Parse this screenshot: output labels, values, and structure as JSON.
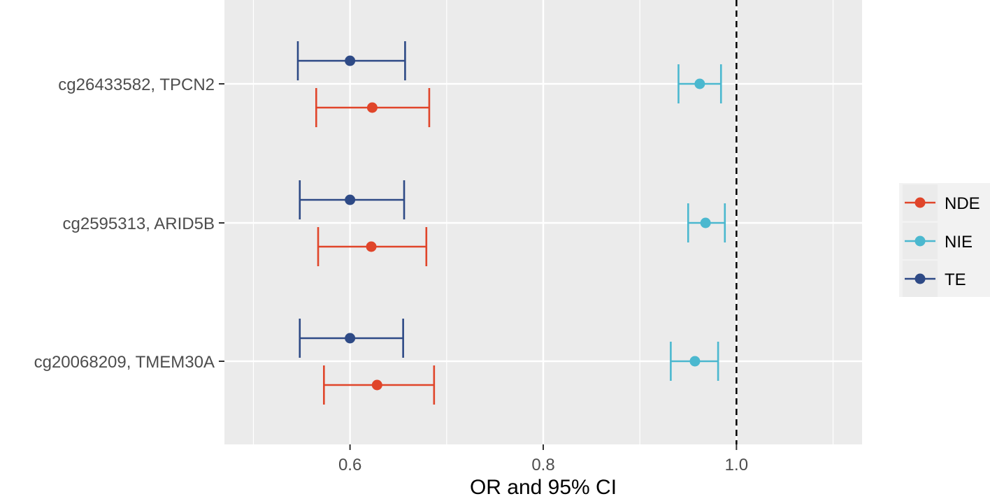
{
  "chart_data": {
    "type": "forest",
    "xlabel": "OR and 95% CI",
    "xlim": [
      0.47,
      1.13
    ],
    "x_ticks": [
      0.6,
      0.8,
      1.0
    ],
    "x_tick_labels": [
      "0.6",
      "0.8",
      "1.0"
    ],
    "x_minor_ticks": [
      0.5,
      0.7,
      0.9,
      1.1
    ],
    "reference_line": 1.0,
    "categories": [
      "cg26433582, TPCN2",
      "cg2595313, ARID5B",
      "cg20068209, TMEM30A"
    ],
    "legend": [
      {
        "name": "NDE",
        "color": "#E0452A"
      },
      {
        "name": "NIE",
        "color": "#4BB8CF"
      },
      {
        "name": "TE",
        "color": "#2E4A86"
      }
    ],
    "series": [
      {
        "name": "TE",
        "color": "#2E4A86",
        "offset": "above",
        "estimates": [
          0.6,
          0.6,
          0.6
        ],
        "lower": [
          0.546,
          0.548,
          0.548
        ],
        "upper": [
          0.657,
          0.656,
          0.655
        ]
      },
      {
        "name": "NIE",
        "color": "#4BB8CF",
        "offset": "center",
        "estimates": [
          0.962,
          0.968,
          0.957
        ],
        "lower": [
          0.94,
          0.95,
          0.932
        ],
        "upper": [
          0.984,
          0.988,
          0.981
        ]
      },
      {
        "name": "NDE",
        "color": "#E0452A",
        "offset": "below",
        "estimates": [
          0.623,
          0.622,
          0.628
        ],
        "lower": [
          0.565,
          0.567,
          0.573
        ],
        "upper": [
          0.682,
          0.679,
          0.687
        ]
      }
    ]
  }
}
